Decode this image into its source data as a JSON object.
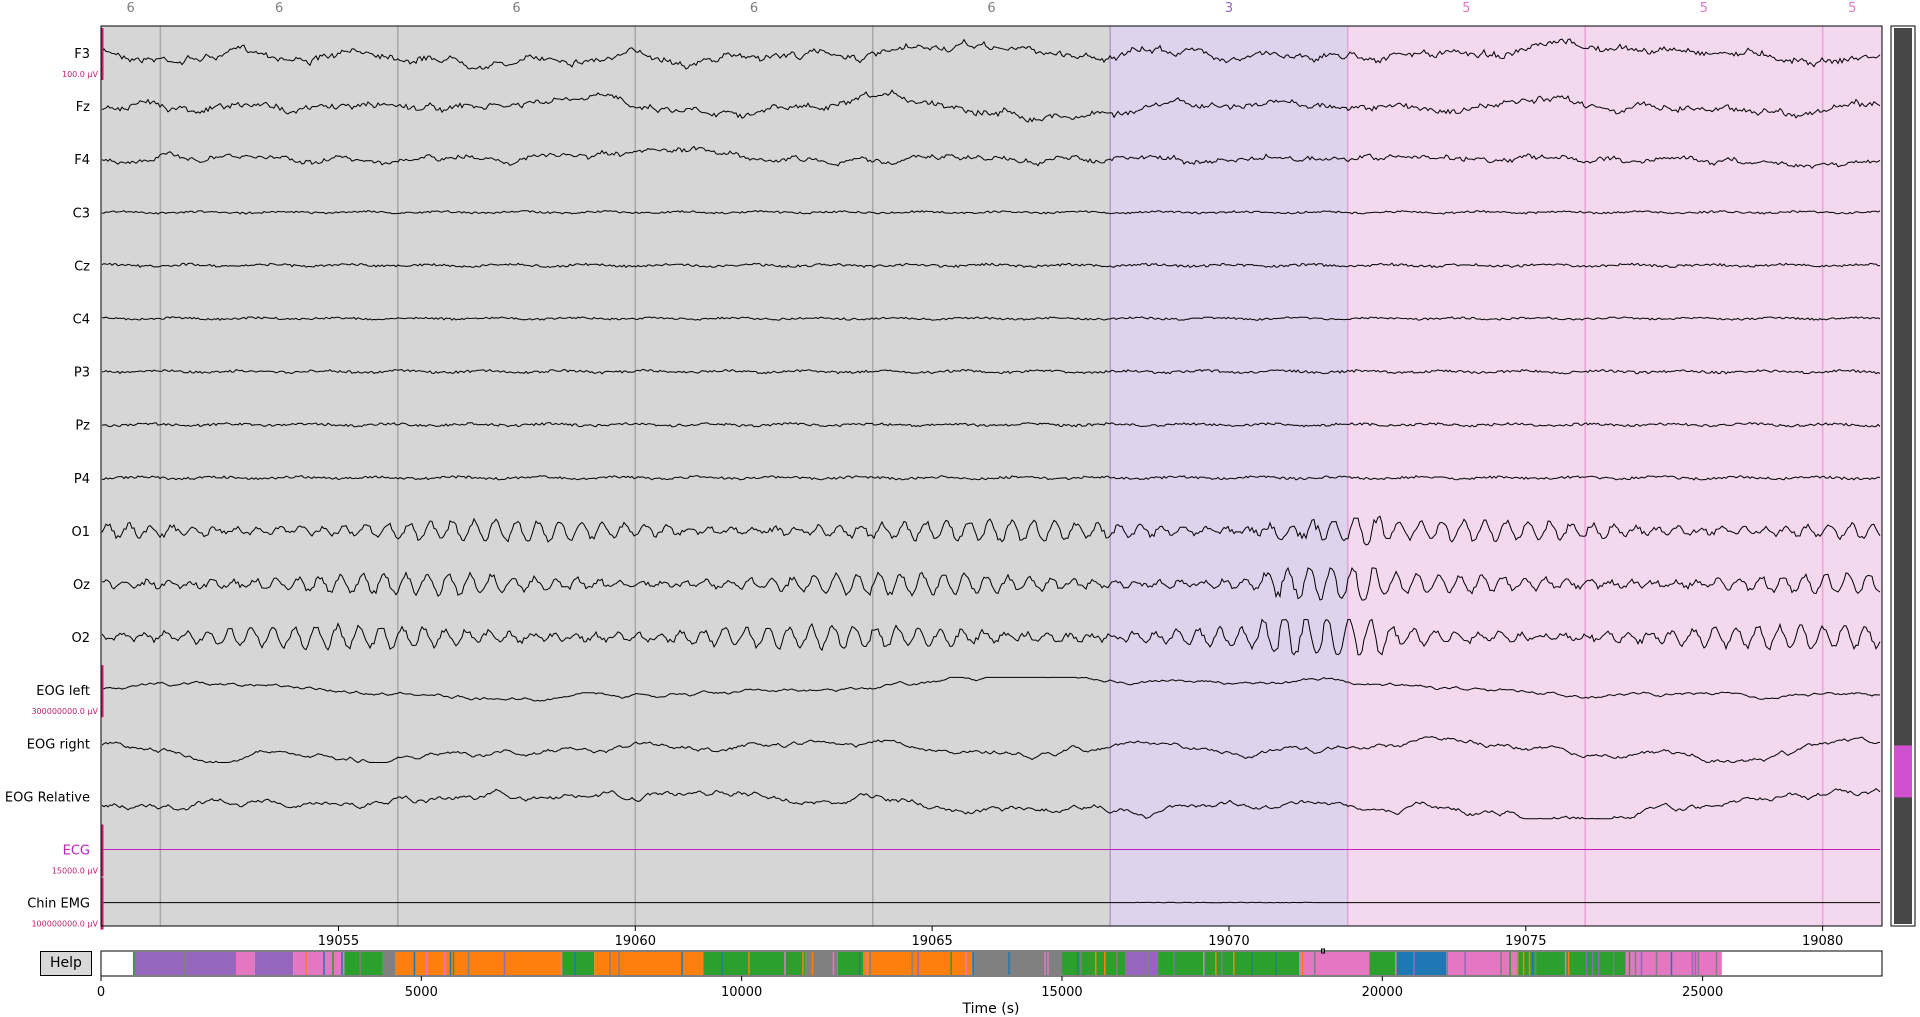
{
  "viewer": {
    "help_label": "Help",
    "time_axis_label": "Time (s)",
    "time_window": [
      19051.0,
      19081.0
    ],
    "time_ticks": [
      "19055",
      "19060",
      "19065",
      "19070",
      "19075",
      "19080"
    ],
    "time_tick_values": [
      19055,
      19060,
      19065,
      19070,
      19075,
      19080
    ],
    "overview_range": [
      0,
      27800
    ],
    "overview_ticks": [
      "0",
      "5000",
      "10000",
      "15000",
      "20000",
      "25000"
    ],
    "overview_tick_values": [
      0,
      5000,
      10000,
      15000,
      20000,
      25000
    ]
  },
  "channels": [
    {
      "name": "F3",
      "color": "#000000",
      "scale": "100.0 µV",
      "amp": 10,
      "style": "slow"
    },
    {
      "name": "Fz",
      "color": "#000000",
      "scale": "",
      "amp": 10,
      "style": "slow"
    },
    {
      "name": "F4",
      "color": "#000000",
      "scale": "",
      "amp": 8,
      "style": "slow"
    },
    {
      "name": "C3",
      "color": "#000000",
      "scale": "",
      "amp": 4,
      "style": "eeg"
    },
    {
      "name": "Cz",
      "color": "#000000",
      "scale": "",
      "amp": 5,
      "style": "eeg"
    },
    {
      "name": "C4",
      "color": "#000000",
      "scale": "",
      "amp": 4,
      "style": "eeg"
    },
    {
      "name": "P3",
      "color": "#000000",
      "scale": "",
      "amp": 5,
      "style": "eeg"
    },
    {
      "name": "Pz",
      "color": "#000000",
      "scale": "",
      "amp": 5,
      "style": "eeg"
    },
    {
      "name": "P4",
      "color": "#000000",
      "scale": "",
      "amp": 5,
      "style": "eeg"
    },
    {
      "name": "O1",
      "color": "#000000",
      "scale": "",
      "amp": 10,
      "style": "alpha"
    },
    {
      "name": "Oz",
      "color": "#000000",
      "scale": "",
      "amp": 10,
      "style": "alpha"
    },
    {
      "name": "O2",
      "color": "#000000",
      "scale": "",
      "amp": 11,
      "style": "alpha"
    },
    {
      "name": "EOG left",
      "color": "#000000",
      "scale": "300000000.0 µV",
      "amp": 8,
      "style": "eog"
    },
    {
      "name": "EOG right",
      "color": "#000000",
      "scale": "",
      "amp": 12,
      "style": "eog"
    },
    {
      "name": "EOG Relative",
      "color": "#000000",
      "scale": "",
      "amp": 14,
      "style": "eog"
    },
    {
      "name": "ECG",
      "color": "#c020c0",
      "scale": "15000.0 µV",
      "amp": 0.5,
      "style": "flat"
    },
    {
      "name": "Chin EMG",
      "color": "#000000",
      "scale": "100000000.0 µV",
      "amp": 1,
      "style": "emg"
    }
  ],
  "annotations": [
    {
      "label": "6",
      "start": 19051.0,
      "end": 19052.0,
      "color": "#d6d6d6",
      "text_color": "#7f7f7f"
    },
    {
      "label": "6",
      "start": 19052.0,
      "end": 19056.0,
      "color": "#d6d6d6",
      "text_color": "#7f7f7f"
    },
    {
      "label": "6",
      "start": 19056.0,
      "end": 19060.0,
      "color": "#d6d6d6",
      "text_color": "#7f7f7f"
    },
    {
      "label": "6",
      "start": 19060.0,
      "end": 19064.0,
      "color": "#d6d6d6",
      "text_color": "#7f7f7f"
    },
    {
      "label": "6",
      "start": 19064.0,
      "end": 19068.0,
      "color": "#d6d6d6",
      "text_color": "#7f7f7f"
    },
    {
      "label": "3",
      "start": 19068.0,
      "end": 19072.0,
      "color": "#ddd3ec",
      "text_color": "#9467bd"
    },
    {
      "label": "5",
      "start": 19072.0,
      "end": 19076.0,
      "color": "#f4d8ee",
      "text_color": "#e377c2"
    },
    {
      "label": "5",
      "start": 19076.0,
      "end": 19080.0,
      "color": "#f4d8ee",
      "text_color": "#e377c2"
    },
    {
      "label": "5",
      "start": 19080.0,
      "end": 19081.0,
      "color": "#f4d8ee",
      "text_color": "#e377c2"
    }
  ],
  "scrollbar": {
    "position_fraction": 0.85,
    "indicator_color": "#d050d0"
  },
  "hypnogram_colors": {
    "6": "#808080",
    "3": "#9467bd",
    "5": "#e377c2",
    "2": "#2ca02c",
    "1": "#ff7f0e",
    "4": "#1f77b4"
  },
  "hypnogram": [
    {
      "start": 500,
      "end": 2100,
      "stage": "3"
    },
    {
      "start": 2100,
      "end": 2400,
      "stage": "5"
    },
    {
      "start": 2400,
      "end": 3000,
      "stage": "3"
    },
    {
      "start": 3000,
      "end": 3800,
      "stage": "5"
    },
    {
      "start": 3800,
      "end": 4400,
      "stage": "2"
    },
    {
      "start": 4400,
      "end": 4600,
      "stage": "6"
    },
    {
      "start": 4600,
      "end": 7200,
      "stage": "1"
    },
    {
      "start": 7200,
      "end": 7700,
      "stage": "2"
    },
    {
      "start": 7700,
      "end": 9400,
      "stage": "1"
    },
    {
      "start": 9400,
      "end": 11000,
      "stage": "2"
    },
    {
      "start": 11000,
      "end": 11500,
      "stage": "6"
    },
    {
      "start": 11500,
      "end": 11900,
      "stage": "2"
    },
    {
      "start": 11900,
      "end": 13600,
      "stage": "1"
    },
    {
      "start": 13600,
      "end": 15000,
      "stage": "6"
    },
    {
      "start": 15000,
      "end": 16000,
      "stage": "2"
    },
    {
      "start": 16000,
      "end": 16500,
      "stage": "3"
    },
    {
      "start": 16500,
      "end": 18700,
      "stage": "2"
    },
    {
      "start": 18700,
      "end": 19800,
      "stage": "5"
    },
    {
      "start": 19800,
      "end": 20200,
      "stage": "2"
    },
    {
      "start": 20200,
      "end": 21000,
      "stage": "4"
    },
    {
      "start": 21000,
      "end": 22100,
      "stage": "5"
    },
    {
      "start": 22100,
      "end": 23800,
      "stage": "2"
    },
    {
      "start": 23800,
      "end": 25300,
      "stage": "5"
    }
  ]
}
